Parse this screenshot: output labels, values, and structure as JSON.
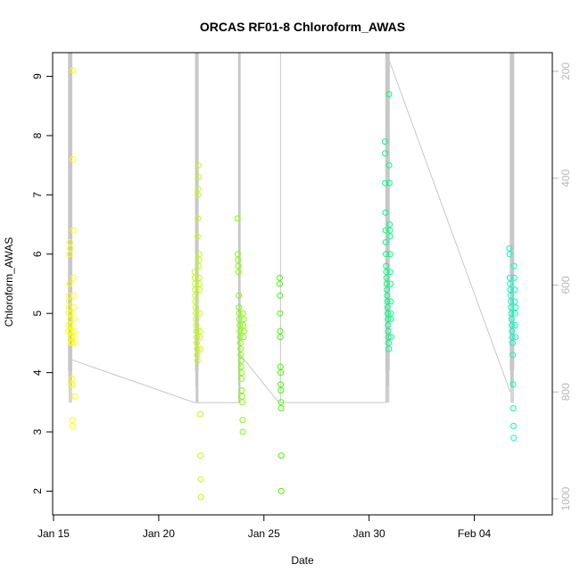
{
  "chart_data": {
    "type": "scatter",
    "title": "ORCAS RF01-8 Chloroform_AWAS",
    "xlabel": "Date",
    "ylabel": "Chloroform_AWAS",
    "x_ticks": [
      {
        "date": "2016-01-15",
        "label": "Jan 15"
      },
      {
        "date": "2016-01-20",
        "label": "Jan 20"
      },
      {
        "date": "2016-01-25",
        "label": "Jan 25"
      },
      {
        "date": "2016-01-30",
        "label": "Jan 30"
      },
      {
        "date": "2016-02-04",
        "label": "Feb 04"
      }
    ],
    "xlim": [
      "2016-01-14T23:00",
      "2016-02-07T17:00"
    ],
    "y_ticks": [
      "2",
      "3",
      "4",
      "5",
      "6",
      "7",
      "8",
      "9"
    ],
    "ylim": [
      1.6,
      9.4
    ],
    "y2_ticks": [
      "200",
      "400",
      "600",
      "800",
      "1000"
    ],
    "y2lim": [
      1030,
      165
    ],
    "y2_reversed": true,
    "grid": false,
    "legend": "none",
    "point_style": "open circle",
    "pressure_trace_color": "#c8c8c8",
    "flights": [
      {
        "color": "#ffff00",
        "values": [
          4.7,
          4.8,
          5.0,
          5.1,
          5.2,
          5.3,
          5.5,
          5.5,
          6.0,
          6.2,
          6.1,
          4.9,
          4.6,
          4.5,
          4.7,
          5.0,
          4.8,
          4.6,
          4.5,
          3.8,
          3.9,
          3.8,
          3.2,
          3.1,
          7.6,
          9.1,
          6.4,
          5.6,
          5.3,
          5.1,
          4.9,
          4.7,
          4.6,
          4.5,
          3.6
        ]
      },
      {
        "color": "#bfff00",
        "values": [
          5.7,
          5.6,
          5.5,
          5.4,
          5.3,
          5.2,
          5.1,
          5.0,
          4.9,
          4.8,
          4.7,
          4.6,
          4.5,
          4.4,
          4.3,
          4.2,
          6.3,
          6.6,
          7.0,
          7.1,
          7.3,
          7.5,
          5.8,
          5.9,
          6.0,
          5.6,
          5.5,
          5.4,
          5.0,
          4.7,
          4.6,
          4.4,
          3.3,
          2.6,
          2.2,
          1.9
        ]
      },
      {
        "color": "#80ff00",
        "values": [
          6.6,
          6.0,
          5.9,
          5.8,
          5.7,
          5.3,
          5.1,
          5.0,
          4.9,
          4.8,
          4.7,
          4.6,
          4.5,
          4.4,
          4.3,
          4.2,
          4.1,
          4.0,
          3.9,
          3.7,
          3.6,
          3.5,
          3.2,
          3.0,
          5.0,
          4.8,
          4.6,
          4.9,
          4.7
        ]
      },
      {
        "color": "#40ff00",
        "values": [
          5.6,
          5.5,
          5.3,
          5.0,
          4.7,
          4.6,
          4.1,
          4.0,
          3.8,
          3.7,
          3.5,
          3.4,
          2.6,
          2.0
        ]
      },
      {
        "color": "#00ff7f",
        "values": [
          7.9,
          7.7,
          7.2,
          6.7,
          6.4,
          6.2,
          6.0,
          5.8,
          5.7,
          5.6,
          5.5,
          5.4,
          5.3,
          5.2,
          5.1,
          5.0,
          4.9,
          4.8,
          4.7,
          4.6,
          4.5,
          4.4,
          8.7,
          7.5,
          7.2,
          6.5,
          6.4,
          6.3,
          6.0,
          5.7,
          5.5,
          5.2,
          5.0,
          4.9,
          4.6
        ]
      },
      {
        "color": "#00ffbf",
        "values": [
          6.1,
          6.0,
          5.6,
          5.5,
          5.4,
          5.3,
          5.2,
          5.1,
          5.0,
          4.9,
          4.8,
          4.7,
          4.6,
          4.5,
          4.3,
          3.8,
          3.4,
          3.1,
          2.9,
          5.8,
          5.6,
          5.4,
          5.2,
          5.0,
          4.8,
          4.6,
          5.1
        ]
      }
    ]
  }
}
